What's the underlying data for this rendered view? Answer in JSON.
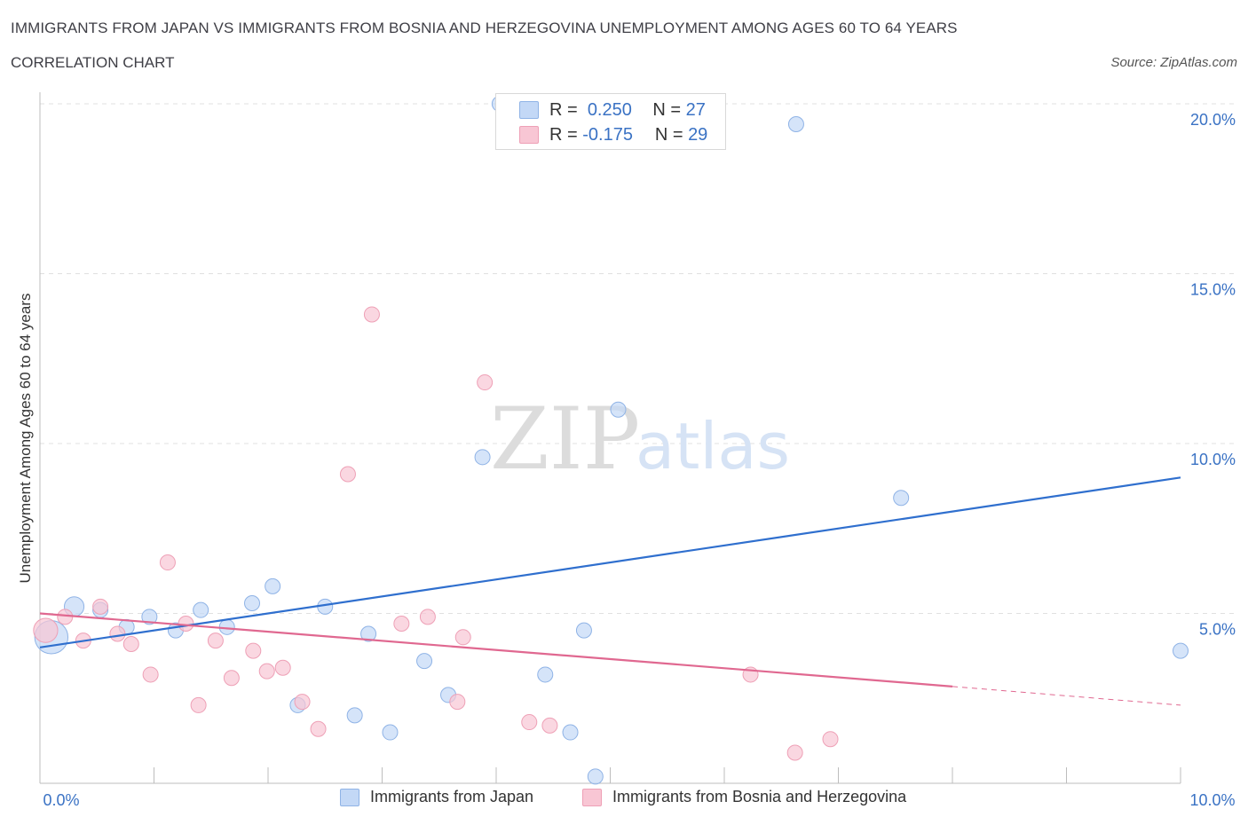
{
  "header": {
    "title": "IMMIGRANTS FROM JAPAN VS IMMIGRANTS FROM BOSNIA AND HERZEGOVINA UNEMPLOYMENT AMONG AGES 60 TO 64 YEARS",
    "subtitle": "CORRELATION CHART",
    "source": "Source: ZipAtlas.com"
  },
  "watermark": {
    "zip": "ZIP",
    "atlas": "atlas"
  },
  "legend": {
    "r_label": "R =",
    "n_label": "N =",
    "series": [
      {
        "r": "0.250",
        "n": "27"
      },
      {
        "r": "-0.175",
        "n": "29"
      }
    ]
  },
  "colors": {
    "japan_fill": "#c3d8f6",
    "japan_stroke": "#8fb3e6",
    "japan_line": "#2f6fce",
    "bosnia_fill": "#f8c6d4",
    "bosnia_stroke": "#eea0b6",
    "bosnia_line": "#e06890",
    "axis_text": "#3a72c4",
    "grid": "#e0e0e0"
  },
  "chart_data": {
    "type": "scatter",
    "title": "IMMIGRANTS FROM JAPAN VS IMMIGRANTS FROM BOSNIA AND HERZEGOVINA UNEMPLOYMENT AMONG AGES 60 TO 64 YEARS",
    "xlabel": "",
    "ylabel": "Unemployment Among Ages 60 to 64 years",
    "xlim": [
      0,
      10
    ],
    "ylim": [
      0,
      20
    ],
    "x_tick_labels": [
      {
        "value": 0,
        "label": "0.0%"
      },
      {
        "value": 10,
        "label": "10.0%"
      }
    ],
    "y_tick_labels": [
      {
        "value": 5,
        "label": "5.0%"
      },
      {
        "value": 10,
        "label": "10.0%"
      },
      {
        "value": 15,
        "label": "15.0%"
      },
      {
        "value": 20,
        "label": "20.0%"
      }
    ],
    "series": [
      {
        "name": "Immigrants from Japan",
        "r": 0.25,
        "n": 27,
        "trend": {
          "x0": 0,
          "y0": 4.0,
          "x1": 10,
          "y1": 9.0
        },
        "points": [
          {
            "x": 0.1,
            "y": 4.3,
            "size": 2.2
          },
          {
            "x": 0.3,
            "y": 5.2,
            "size": 1.3
          },
          {
            "x": 0.53,
            "y": 5.1,
            "size": 1
          },
          {
            "x": 0.76,
            "y": 4.6,
            "size": 1
          },
          {
            "x": 0.96,
            "y": 4.9,
            "size": 1
          },
          {
            "x": 1.19,
            "y": 4.5,
            "size": 1
          },
          {
            "x": 1.41,
            "y": 5.1,
            "size": 1
          },
          {
            "x": 1.64,
            "y": 4.6,
            "size": 1
          },
          {
            "x": 1.86,
            "y": 5.3,
            "size": 1
          },
          {
            "x": 2.04,
            "y": 5.8,
            "size": 1
          },
          {
            "x": 2.26,
            "y": 2.3,
            "size": 1
          },
          {
            "x": 2.5,
            "y": 5.2,
            "size": 1
          },
          {
            "x": 2.76,
            "y": 2.0,
            "size": 1
          },
          {
            "x": 2.88,
            "y": 4.4,
            "size": 1
          },
          {
            "x": 3.07,
            "y": 1.5,
            "size": 1
          },
          {
            "x": 3.37,
            "y": 3.6,
            "size": 1
          },
          {
            "x": 3.58,
            "y": 2.6,
            "size": 1
          },
          {
            "x": 3.88,
            "y": 9.6,
            "size": 1
          },
          {
            "x": 4.03,
            "y": 20.0,
            "size": 1
          },
          {
            "x": 4.43,
            "y": 3.2,
            "size": 1
          },
          {
            "x": 4.65,
            "y": 1.5,
            "size": 1
          },
          {
            "x": 4.77,
            "y": 4.5,
            "size": 1
          },
          {
            "x": 4.87,
            "y": 0.2,
            "size": 1
          },
          {
            "x": 5.07,
            "y": 11.0,
            "size": 1
          },
          {
            "x": 6.63,
            "y": 19.4,
            "size": 1
          },
          {
            "x": 7.55,
            "y": 8.4,
            "size": 1
          },
          {
            "x": 10.0,
            "y": 3.9,
            "size": 1
          }
        ]
      },
      {
        "name": "Immigrants from Bosnia and Herzegovina",
        "r": -0.175,
        "n": 29,
        "trend": {
          "x0": 0,
          "y0": 5.0,
          "x1": 8.0,
          "y1": 2.85
        },
        "trend_dashed": {
          "x0": 8.0,
          "y0": 2.85,
          "x1": 10.0,
          "y1": 2.3
        },
        "points": [
          {
            "x": 0.05,
            "y": 4.5,
            "size": 1.6
          },
          {
            "x": 0.22,
            "y": 4.9,
            "size": 1
          },
          {
            "x": 0.38,
            "y": 4.2,
            "size": 1
          },
          {
            "x": 0.53,
            "y": 5.2,
            "size": 1
          },
          {
            "x": 0.68,
            "y": 4.4,
            "size": 1
          },
          {
            "x": 0.8,
            "y": 4.1,
            "size": 1
          },
          {
            "x": 0.97,
            "y": 3.2,
            "size": 1
          },
          {
            "x": 1.12,
            "y": 6.5,
            "size": 1
          },
          {
            "x": 1.28,
            "y": 4.7,
            "size": 1
          },
          {
            "x": 1.39,
            "y": 2.3,
            "size": 1
          },
          {
            "x": 1.54,
            "y": 4.2,
            "size": 1
          },
          {
            "x": 1.68,
            "y": 3.1,
            "size": 1
          },
          {
            "x": 1.87,
            "y": 3.9,
            "size": 1
          },
          {
            "x": 1.99,
            "y": 3.3,
            "size": 1
          },
          {
            "x": 2.13,
            "y": 3.4,
            "size": 1
          },
          {
            "x": 2.3,
            "y": 2.4,
            "size": 1
          },
          {
            "x": 2.44,
            "y": 1.6,
            "size": 1
          },
          {
            "x": 2.7,
            "y": 9.1,
            "size": 1
          },
          {
            "x": 2.91,
            "y": 13.8,
            "size": 1
          },
          {
            "x": 3.17,
            "y": 4.7,
            "size": 1
          },
          {
            "x": 3.4,
            "y": 4.9,
            "size": 1
          },
          {
            "x": 3.66,
            "y": 2.4,
            "size": 1
          },
          {
            "x": 3.71,
            "y": 4.3,
            "size": 1
          },
          {
            "x": 3.9,
            "y": 11.8,
            "size": 1
          },
          {
            "x": 4.29,
            "y": 1.8,
            "size": 1
          },
          {
            "x": 4.47,
            "y": 1.7,
            "size": 1
          },
          {
            "x": 6.23,
            "y": 3.2,
            "size": 1
          },
          {
            "x": 6.62,
            "y": 0.9,
            "size": 1
          },
          {
            "x": 6.93,
            "y": 1.3,
            "size": 1
          }
        ]
      }
    ]
  }
}
